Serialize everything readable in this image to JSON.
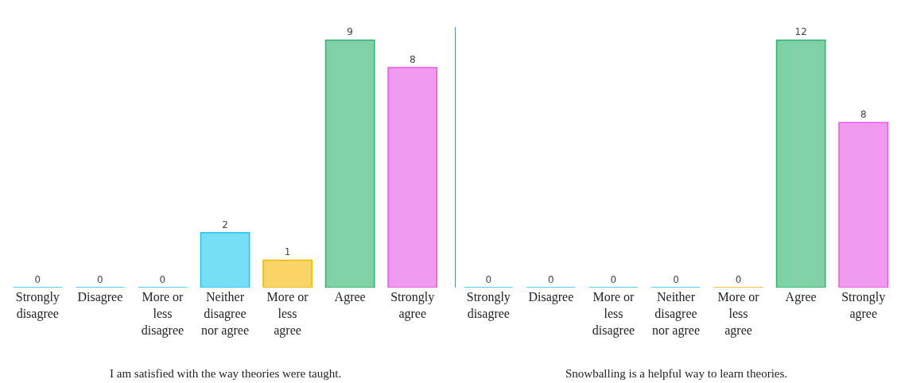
{
  "chart_data": [
    {
      "type": "bar",
      "title": "I am satisfied with the way theories were taught.",
      "categories": [
        "Strongly disagree",
        "Disagree",
        "More or less disagree",
        "Neither disagree nor agree",
        "More or less agree",
        "Agree",
        "Strongly agree"
      ],
      "values": [
        0,
        0,
        0,
        2,
        1,
        9,
        8
      ],
      "colors": [
        "#1ec8f0",
        "#1ec8f0",
        "#1ec8f0",
        "#1ec8f0",
        "#f5b800",
        "#2db36b",
        "#e659e6"
      ],
      "tick_labels": "x",
      "data_labels": true,
      "grid": false
    },
    {
      "type": "bar",
      "title": "Snowballing is a helpful way to learn theories.",
      "categories": [
        "Strongly disagree",
        "Disagree",
        "More or less disagree",
        "Neither disagree nor agree",
        "More or less agree",
        "Agree",
        "Strongly agree"
      ],
      "values": [
        0,
        0,
        0,
        0,
        0,
        12,
        8
      ],
      "colors": [
        "#1ec8f0",
        "#1ec8f0",
        "#1ec8f0",
        "#1ec8f0",
        "#f5b800",
        "#2db36b",
        "#e659e6"
      ],
      "tick_labels": "x",
      "data_labels": true,
      "grid": false
    }
  ]
}
